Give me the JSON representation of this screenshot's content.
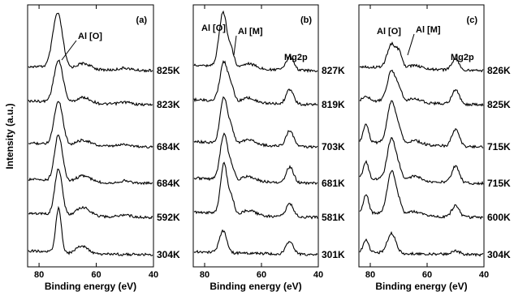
{
  "figure": {
    "ylabel": "Intensity (a.u.)"
  },
  "chart_data": [
    {
      "type": "line",
      "panel_label": "(a)",
      "xlabel": "Binding energy (eV)",
      "xlim": [
        84,
        40
      ],
      "xticks": [
        80,
        60,
        40
      ],
      "annotations": [
        {
          "text": "Al [O]",
          "x": 73
        }
      ],
      "series": [
        {
          "label": "825K",
          "peaks": [
            {
              "x": 73.5,
              "h": 1.25,
              "w": 1.7
            },
            {
              "x": 64.5,
              "h": 0.14,
              "w": 2.5
            },
            {
              "x": 50.0,
              "h": 0.05,
              "w": 2.0
            }
          ]
        },
        {
          "label": "823K",
          "peaks": [
            {
              "x": 73.2,
              "h": 0.95,
              "w": 1.6
            },
            {
              "x": 64.5,
              "h": 0.14,
              "w": 2.5
            },
            {
              "x": 50.0,
              "h": 0.05,
              "w": 2.0
            }
          ]
        },
        {
          "label": "684K",
          "peaks": [
            {
              "x": 73.2,
              "h": 1.0,
              "w": 1.5
            },
            {
              "x": 64.5,
              "h": 0.13,
              "w": 2.5
            },
            {
              "x": 50.0,
              "h": 0.05,
              "w": 2.0
            }
          ]
        },
        {
          "label": "684K",
          "peaks": [
            {
              "x": 73.2,
              "h": 1.05,
              "w": 1.4
            },
            {
              "x": 64.5,
              "h": 0.15,
              "w": 2.5
            },
            {
              "x": 50.0,
              "h": 0.05,
              "w": 2.0
            }
          ]
        },
        {
          "label": "592K",
          "peaks": [
            {
              "x": 73.2,
              "h": 1.05,
              "w": 1.3
            },
            {
              "x": 64.5,
              "h": 0.2,
              "w": 2.5
            },
            {
              "x": 50.0,
              "h": 0.05,
              "w": 2.0
            }
          ]
        },
        {
          "label": "304K",
          "peaks": [
            {
              "x": 73.2,
              "h": 1.0,
              "w": 1.0
            },
            {
              "x": 65.0,
              "h": 0.18,
              "w": 2.0
            }
          ]
        }
      ]
    },
    {
      "type": "line",
      "panel_label": "(b)",
      "xlabel": "Binding energy (eV)",
      "xlim": [
        84,
        40
      ],
      "xticks": [
        80,
        60,
        40
      ],
      "annotations": [
        {
          "text": "Al [O]",
          "x": 76
        },
        {
          "text": "Al [M]",
          "x": 70
        },
        {
          "text": "Mg2p",
          "x": 50
        }
      ],
      "series": [
        {
          "label": "827K",
          "peaks": [
            {
              "x": 73.5,
              "h": 1.25,
              "w": 1.4
            },
            {
              "x": 70.5,
              "h": 0.35,
              "w": 1.0
            },
            {
              "x": 64.5,
              "h": 0.12,
              "w": 2.5
            },
            {
              "x": 50.0,
              "h": 0.3,
              "w": 1.3
            }
          ]
        },
        {
          "label": "819K",
          "peaks": [
            {
              "x": 73.2,
              "h": 0.9,
              "w": 1.4
            },
            {
              "x": 70.5,
              "h": 0.3,
              "w": 1.0
            },
            {
              "x": 64.5,
              "h": 0.12,
              "w": 2.5
            },
            {
              "x": 50.0,
              "h": 0.33,
              "w": 1.3
            }
          ]
        },
        {
          "label": "703K",
          "peaks": [
            {
              "x": 73.2,
              "h": 1.05,
              "w": 1.3
            },
            {
              "x": 70.5,
              "h": 0.3,
              "w": 1.0
            },
            {
              "x": 64.5,
              "h": 0.12,
              "w": 2.5
            },
            {
              "x": 50.0,
              "h": 0.36,
              "w": 1.3
            }
          ]
        },
        {
          "label": "681K",
          "peaks": [
            {
              "x": 73.2,
              "h": 1.05,
              "w": 1.3
            },
            {
              "x": 70.5,
              "h": 0.3,
              "w": 1.0
            },
            {
              "x": 64.5,
              "h": 0.12,
              "w": 2.5
            },
            {
              "x": 50.0,
              "h": 0.36,
              "w": 1.3
            }
          ]
        },
        {
          "label": "581K",
          "peaks": [
            {
              "x": 73.2,
              "h": 1.15,
              "w": 1.2
            },
            {
              "x": 70.5,
              "h": 0.35,
              "w": 1.0
            },
            {
              "x": 64.5,
              "h": 0.12,
              "w": 2.5
            },
            {
              "x": 50.0,
              "h": 0.3,
              "w": 1.3
            }
          ]
        },
        {
          "label": "301K",
          "peaks": [
            {
              "x": 73.5,
              "h": 0.5,
              "w": 1.3
            },
            {
              "x": 50.0,
              "h": 0.3,
              "w": 1.3
            }
          ]
        }
      ]
    },
    {
      "type": "line",
      "panel_label": "(c)",
      "xlabel": "Binding energy (eV)",
      "xlim": [
        84,
        40
      ],
      "xticks": [
        80,
        60,
        40
      ],
      "annotations": [
        {
          "text": "Al [O]",
          "x": 76
        },
        {
          "text": "Al [M]",
          "x": 68
        },
        {
          "text": "Mg2p",
          "x": 50
        }
      ],
      "series": [
        {
          "label": "826K",
          "peaks": [
            {
              "x": 72.5,
              "h": 0.55,
              "w": 1.5
            },
            {
              "x": 69.8,
              "h": 0.3,
              "w": 1.0
            },
            {
              "x": 64.5,
              "h": 0.08,
              "w": 2.5
            },
            {
              "x": 50.0,
              "h": 0.25,
              "w": 1.3
            }
          ]
        },
        {
          "label": "825K",
          "peaks": [
            {
              "x": 81.5,
              "h": 0.1,
              "w": 1.0
            },
            {
              "x": 72.5,
              "h": 0.7,
              "w": 1.5
            },
            {
              "x": 69.8,
              "h": 0.25,
              "w": 1.0
            },
            {
              "x": 64.5,
              "h": 0.1,
              "w": 2.5
            },
            {
              "x": 50.0,
              "h": 0.32,
              "w": 1.3
            }
          ]
        },
        {
          "label": "715K",
          "peaks": [
            {
              "x": 81.5,
              "h": 0.4,
              "w": 0.9
            },
            {
              "x": 72.5,
              "h": 0.95,
              "w": 1.5
            },
            {
              "x": 69.8,
              "h": 0.25,
              "w": 1.0
            },
            {
              "x": 64.5,
              "h": 0.1,
              "w": 2.5
            },
            {
              "x": 50.0,
              "h": 0.38,
              "w": 1.3
            }
          ]
        },
        {
          "label": "715K",
          "peaks": [
            {
              "x": 81.5,
              "h": 0.38,
              "w": 0.9
            },
            {
              "x": 72.5,
              "h": 0.95,
              "w": 1.5
            },
            {
              "x": 69.8,
              "h": 0.2,
              "w": 1.0
            },
            {
              "x": 64.5,
              "h": 0.12,
              "w": 2.5
            },
            {
              "x": 50.0,
              "h": 0.38,
              "w": 1.3
            }
          ]
        },
        {
          "label": "600K",
          "peaks": [
            {
              "x": 81.5,
              "h": 0.42,
              "w": 0.9
            },
            {
              "x": 72.5,
              "h": 1.0,
              "w": 1.5
            },
            {
              "x": 69.8,
              "h": 0.2,
              "w": 1.0
            },
            {
              "x": 64.5,
              "h": 0.1,
              "w": 2.5
            },
            {
              "x": 50.0,
              "h": 0.25,
              "w": 1.3
            }
          ]
        },
        {
          "label": "304K",
          "peaks": [
            {
              "x": 81.5,
              "h": 0.28,
              "w": 0.9
            },
            {
              "x": 72.5,
              "h": 0.45,
              "w": 1.5
            },
            {
              "x": 50.0,
              "h": 0.08,
              "w": 1.5
            }
          ]
        }
      ]
    }
  ]
}
